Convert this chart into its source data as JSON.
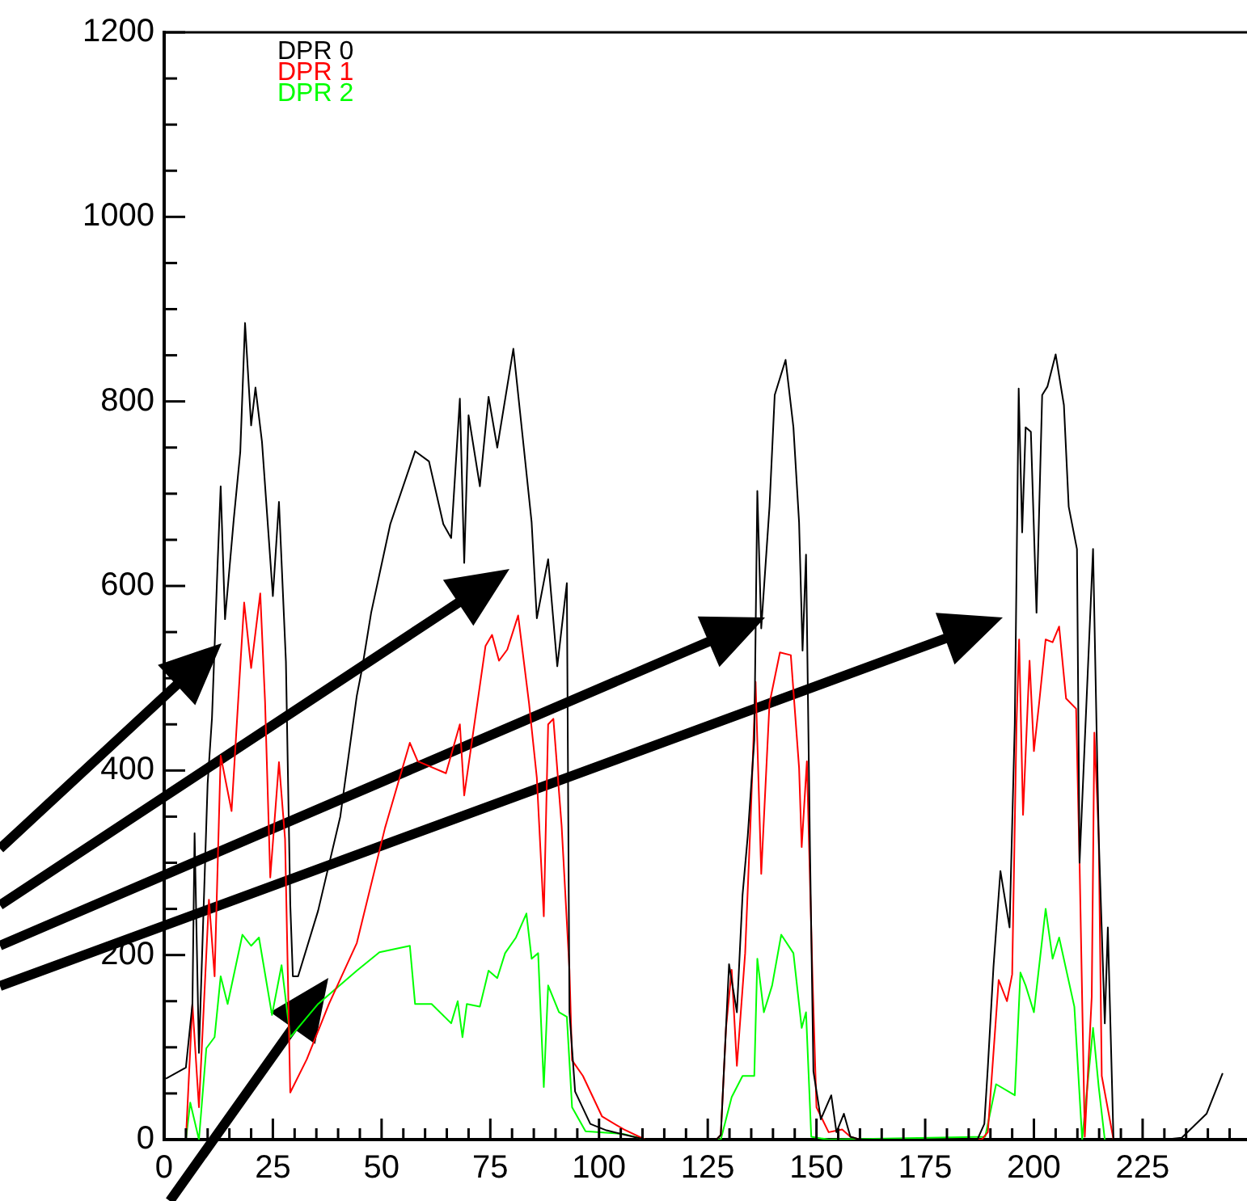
{
  "chart_data": {
    "type": "line",
    "xlim": [
      0,
      249
    ],
    "ylim": [
      0,
      1200
    ],
    "xticks": [
      0,
      {
        "value": 5,
        "label": null
      },
      {
        "value": 10,
        "label": null
      },
      {
        "value": 15,
        "label": null
      },
      {
        "value": 20,
        "label": null
      },
      25,
      {
        "value": 30,
        "label": null
      },
      {
        "value": 35,
        "label": null
      },
      {
        "value": 40,
        "label": null
      },
      {
        "value": 45,
        "label": null
      },
      50,
      {
        "value": 55,
        "label": null
      },
      {
        "value": 60,
        "label": null
      },
      {
        "value": 65,
        "label": null
      },
      {
        "value": 70,
        "label": null
      },
      75,
      {
        "value": 80,
        "label": null
      },
      {
        "value": 85,
        "label": null
      },
      {
        "value": 90,
        "label": null
      },
      {
        "value": 95,
        "label": null
      },
      100,
      {
        "value": 105,
        "label": null
      },
      {
        "value": 110,
        "label": null
      },
      {
        "value": 115,
        "label": null
      },
      {
        "value": 120,
        "label": null
      },
      125,
      {
        "value": 130,
        "label": null
      },
      {
        "value": 135,
        "label": null
      },
      {
        "value": 140,
        "label": null
      },
      {
        "value": 145,
        "label": null
      },
      150,
      {
        "value": 155,
        "label": null
      },
      {
        "value": 160,
        "label": null
      },
      {
        "value": 165,
        "label": null
      },
      {
        "value": 170,
        "label": null
      },
      175,
      {
        "value": 180,
        "label": null
      },
      {
        "value": 185,
        "label": null
      },
      {
        "value": 190,
        "label": null
      },
      {
        "value": 195,
        "label": null
      },
      200,
      {
        "value": 205,
        "label": null
      },
      {
        "value": 210,
        "label": null
      },
      {
        "value": 215,
        "label": null
      },
      {
        "value": 220,
        "label": null
      },
      225,
      {
        "value": 230,
        "label": null
      },
      {
        "value": 235,
        "label": null
      },
      {
        "value": 240,
        "label": null
      },
      {
        "value": 245,
        "label": null
      }
    ],
    "yticks": [
      0,
      {
        "value": 50,
        "label": null
      },
      {
        "value": 100,
        "label": null
      },
      {
        "value": 150,
        "label": null
      },
      200,
      {
        "value": 250,
        "label": null
      },
      {
        "value": 300,
        "label": null
      },
      {
        "value": 350,
        "label": null
      },
      400,
      {
        "value": 450,
        "label": null
      },
      {
        "value": 500,
        "label": null
      },
      {
        "value": 550,
        "label": null
      },
      600,
      {
        "value": 650,
        "label": null
      },
      {
        "value": 700,
        "label": null
      },
      {
        "value": 750,
        "label": null
      },
      800,
      {
        "value": 850,
        "label": null
      },
      {
        "value": 900,
        "label": null
      },
      {
        "value": 950,
        "label": null
      },
      1000,
      {
        "value": 1050,
        "label": null
      },
      {
        "value": 1100,
        "label": null
      },
      {
        "value": 1150,
        "label": null
      },
      1200
    ],
    "grid": false,
    "legend": "top left",
    "marker": "none",
    "line_style": "solid",
    "series": [
      {
        "name": "DPR 0",
        "color": "#000000",
        "x": [
          0.4,
          5,
          6.5,
          7,
          8,
          10,
          11,
          12.3,
          13,
          14,
          16,
          17.5,
          18.6,
          20,
          21,
          22.5,
          25,
          26.4,
          28,
          29,
          29.6,
          30.8,
          35.4,
          40.5,
          44.3,
          45.5,
          47.6,
          52,
          57.7,
          60.9,
          64.2,
          66,
          68,
          69,
          70,
          72.6,
          74.6,
          76.6,
          80.3,
          82.7,
          84.5,
          85.7,
          88.3,
          90.4,
          92.6,
          93.2,
          94.5,
          98,
          101.7,
          110.6,
          127,
          128,
          129.9,
          131.7,
          133,
          134.2,
          135.7,
          136.4,
          137.3,
          139.2,
          140.4,
          142.9,
          144.7,
          146,
          146.8,
          147.6,
          148.5,
          149.3,
          151,
          153.4,
          154.6,
          156.3,
          157.8,
          160,
          187,
          188.6,
          189.4,
          190.7,
          192.3,
          194.4,
          195.6,
          196.5,
          197.3,
          198.1,
          199.3,
          200.6,
          201.9,
          203.1,
          205,
          206.9,
          208,
          209.9,
          210.5,
          213.6,
          214.9,
          216.3,
          217,
          218.3,
          230,
          234,
          239.7,
          243.4
        ],
        "values": [
          66,
          78,
          147,
          332,
          94,
          386,
          457,
          625,
          708,
          564,
          672,
          745,
          885,
          774,
          815,
          756,
          589,
          691,
          518,
          255,
          177,
          177,
          248,
          350,
          481,
          510,
          571,
          667,
          746,
          735,
          667,
          652,
          803,
          625,
          785,
          708,
          805,
          750,
          857,
          750,
          669,
          565,
          629,
          513,
          603,
          138,
          52,
          17,
          10,
          0,
          0,
          5,
          190,
          138,
          265,
          329,
          433,
          703,
          554,
          686,
          807,
          845,
          772,
          669,
          530,
          634,
          317,
          74,
          22,
          48,
          8,
          28,
          3,
          0,
          0,
          17,
          78,
          187,
          291,
          230,
          450,
          814,
          658,
          772,
          767,
          571,
          807,
          816,
          851,
          796,
          686,
          640,
          300,
          640,
          328,
          126,
          230,
          0,
          0,
          2,
          28,
          72
        ]
      },
      {
        "name": "DPR 1",
        "color": "#ff0000",
        "x": [
          5,
          6.5,
          8,
          10.3,
          11.6,
          13,
          15.5,
          17.4,
          18.4,
          20,
          22.1,
          23.2,
          24.4,
          26.4,
          27.8,
          29,
          32.8,
          37.9,
          44.3,
          50.8,
          56.5,
          58.3,
          64.8,
          68,
          69,
          73.9,
          75.4,
          77,
          78.9,
          81.4,
          83.9,
          85.7,
          87.3,
          88.3,
          89.5,
          91.4,
          93.2,
          93.8,
          96.3,
          100.7,
          105.7,
          110.6,
          127,
          128,
          129.2,
          130.5,
          131.7,
          133.6,
          134.8,
          136,
          137.3,
          139.2,
          141.6,
          144.1,
          146,
          146.6,
          147.8,
          149.1,
          150,
          152.8,
          155.9,
          157.8,
          160,
          188,
          189.4,
          191.9,
          193.8,
          195,
          196,
          196.6,
          197.5,
          199,
          200,
          201.2,
          202.7,
          204.3,
          205.8,
          207.4,
          209.7,
          210.5,
          211.7,
          213.3,
          213.9,
          214.9,
          215.6,
          218.3
        ],
        "values": [
          0,
          147,
          35,
          260,
          177,
          416,
          356,
          505,
          582,
          511,
          592,
          475,
          284,
          409,
          326,
          51,
          87,
          147,
          213,
          338,
          430,
          410,
          397,
          450,
          373,
          535,
          547,
          519,
          531,
          568,
          473,
          392,
          242,
          450,
          456,
          340,
          184,
          86,
          69,
          25,
          11,
          0,
          0,
          5,
          121,
          184,
          80,
          202,
          340,
          496,
          288,
          473,
          528,
          525,
          403,
          317,
          410,
          173,
          35,
          8,
          11,
          3,
          0,
          0,
          8,
          173,
          150,
          179,
          450,
          542,
          352,
          519,
          421,
          473,
          542,
          539,
          556,
          478,
          467,
          300,
          3,
          155,
          441,
          329,
          69,
          0
        ]
      },
      {
        "name": "DPR 2",
        "color": "#00ff00",
        "x": [
          5,
          6,
          8,
          9.7,
          11.6,
          13,
          14.6,
          18,
          20,
          21.8,
          24.8,
          27,
          29,
          35.4,
          44.3,
          49.5,
          56.5,
          57.7,
          61.5,
          66,
          67.5,
          68.6,
          69.6,
          72.6,
          74.6,
          76.6,
          78.4,
          80.9,
          83.3,
          84.5,
          86,
          87.3,
          88.3,
          90.8,
          92.6,
          93.8,
          96.9,
          105.7,
          110.6,
          128,
          130.5,
          133,
          135.7,
          136.4,
          137.9,
          139.8,
          141.9,
          144.7,
          146.6,
          147.6,
          148.8,
          152.8,
          188.8,
          191.3,
          195.6,
          196.9,
          198.1,
          200,
          202.7,
          204.3,
          205.8,
          209.3,
          211.1,
          213.6,
          214.9,
          216.3
        ],
        "values": [
          0,
          40,
          0,
          99,
          111,
          177,
          147,
          222,
          210,
          219,
          135,
          189,
          111,
          147,
          183,
          203,
          210,
          147,
          147,
          126,
          150,
          111,
          147,
          144,
          183,
          175,
          202,
          219,
          245,
          196,
          202,
          57,
          167,
          138,
          133,
          35,
          9,
          6,
          0,
          0,
          46,
          69,
          69,
          196,
          138,
          167,
          222,
          202,
          121,
          138,
          3,
          0,
          3,
          60,
          48,
          181,
          167,
          138,
          250,
          196,
          219,
          144,
          0,
          121,
          57,
          0
        ]
      }
    ]
  }
}
